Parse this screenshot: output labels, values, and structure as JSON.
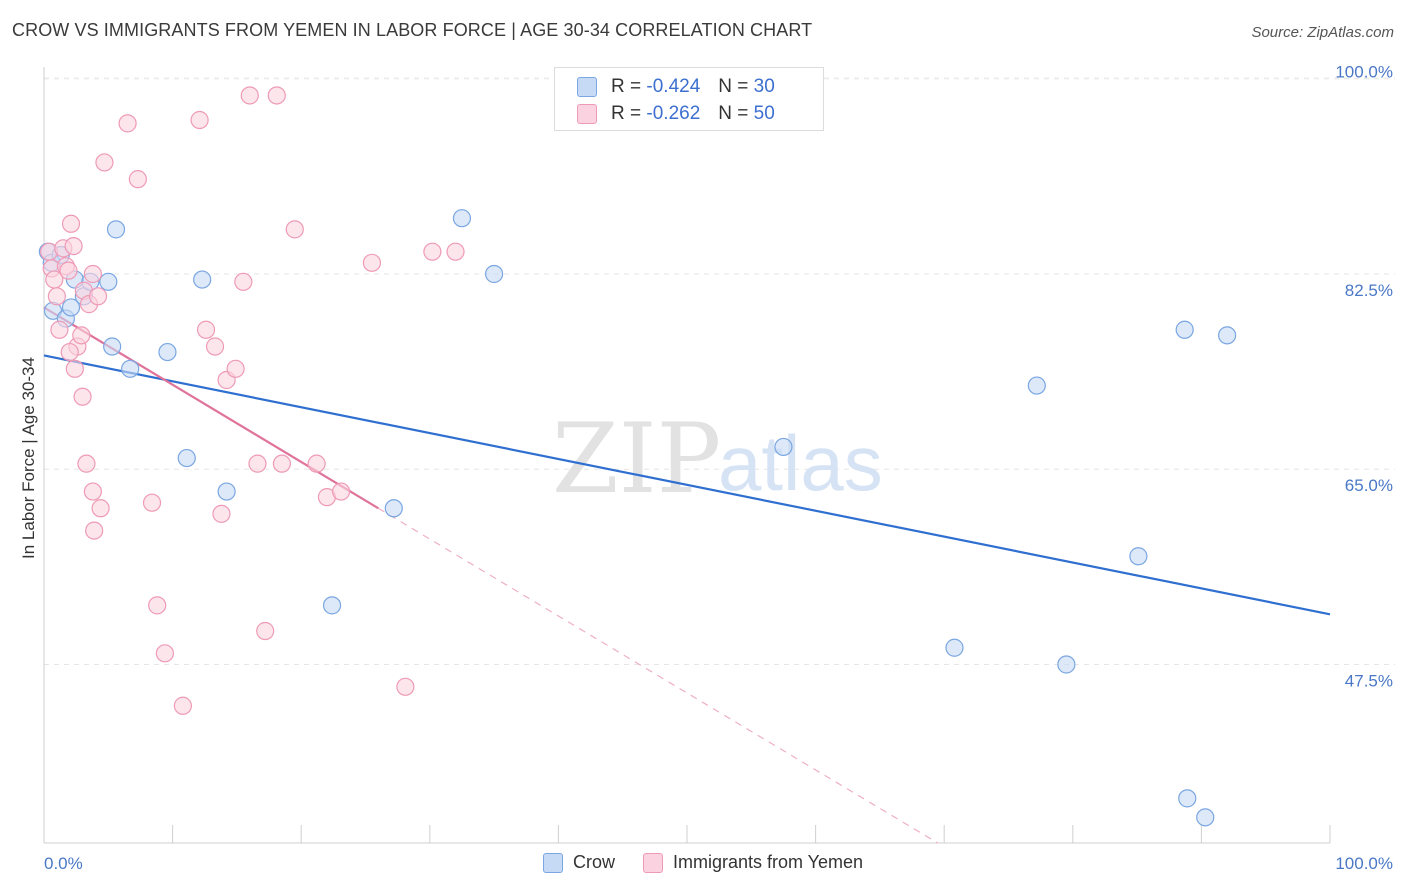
{
  "title": "CROW VS IMMIGRANTS FROM YEMEN IN LABOR FORCE | AGE 30-34 CORRELATION CHART",
  "source": "Source: ZipAtlas.com",
  "watermark": {
    "zip": "ZIP",
    "atlas": "atlas"
  },
  "legend": {
    "rows": [
      {
        "r_label": "R =",
        "r_value": "-0.424",
        "n_label": "N =",
        "n_value": "30",
        "color": "#a9c8f0",
        "border": "#7aa6e2"
      },
      {
        "r_label": "R =",
        "r_value": "-0.262",
        "n_label": "N =",
        "n_value": "50",
        "color": "#f8c3d4",
        "border": "#ee9ab6"
      }
    ]
  },
  "bottom_legend": [
    {
      "label": "Crow",
      "color": "#c6daf5",
      "border": "#7aa6e2"
    },
    {
      "label": "Immigrants from Yemen",
      "color": "#fbd3e0",
      "border": "#ee9ab6"
    }
  ],
  "chart_data": {
    "type": "scatter",
    "title": "CROW VS IMMIGRANTS FROM YEMEN IN LABOR FORCE | AGE 30-34 CORRELATION CHART",
    "xlabel": "",
    "ylabel": "In Labor Force | Age 30-34",
    "xlim": [
      0,
      100
    ],
    "ylim": [
      31.5,
      101.5
    ],
    "x_tick_labels": [
      "0.0%",
      "100.0%"
    ],
    "y_ticks": [
      47.5,
      65.0,
      82.5,
      100.0
    ],
    "y_tick_labels": [
      "47.5%",
      "65.0%",
      "82.5%",
      "100.0%"
    ],
    "grid": true,
    "series": [
      {
        "name": "Crow",
        "color": "#7aa6e2",
        "fill": "#c6daf5",
        "trend": {
          "x0": 0,
          "y0": 75.2,
          "x1": 100,
          "y1": 52.0,
          "color": "#2f6fd0"
        },
        "points": [
          [
            0.3,
            84.5
          ],
          [
            0.6,
            83.5
          ],
          [
            0.7,
            79.2
          ],
          [
            1.3,
            84.2
          ],
          [
            1.7,
            78.5
          ],
          [
            2.1,
            79.5
          ],
          [
            2.4,
            82.0
          ],
          [
            3.1,
            80.5
          ],
          [
            3.6,
            81.8
          ],
          [
            5.0,
            81.8
          ],
          [
            5.6,
            86.5
          ],
          [
            5.3,
            76.0
          ],
          [
            6.7,
            74.0
          ],
          [
            9.6,
            75.5
          ],
          [
            11.1,
            66.0
          ],
          [
            12.3,
            82.0
          ],
          [
            14.2,
            63.0
          ],
          [
            22.4,
            52.8
          ],
          [
            27.2,
            61.5
          ],
          [
            32.5,
            87.5
          ],
          [
            35.0,
            82.5
          ],
          [
            57.5,
            67.0
          ],
          [
            70.8,
            49.0
          ],
          [
            77.2,
            72.5
          ],
          [
            79.5,
            47.5
          ],
          [
            85.1,
            57.2
          ],
          [
            88.7,
            77.5
          ],
          [
            92.0,
            77.0
          ],
          [
            88.9,
            35.5
          ],
          [
            90.3,
            33.8
          ]
        ]
      },
      {
        "name": "Immigrants from Yemen",
        "color": "#ee9ab6",
        "fill": "#fbd3e0",
        "trend": {
          "x0": 0,
          "y0": 79.5,
          "x1": 26,
          "y1": 61.5,
          "color": "#e0739a"
        },
        "trend_dashed": {
          "x0": 26,
          "y0": 61.5,
          "x1": 69.5,
          "y1": 31.5,
          "color": "#eeb0c4"
        },
        "points": [
          [
            0.4,
            84.5
          ],
          [
            0.6,
            83.0
          ],
          [
            0.8,
            82.0
          ],
          [
            1.0,
            80.5
          ],
          [
            1.2,
            77.5
          ],
          [
            1.5,
            84.8
          ],
          [
            1.7,
            83.2
          ],
          [
            1.9,
            82.8
          ],
          [
            2.1,
            87.0
          ],
          [
            2.3,
            85.0
          ],
          [
            2.6,
            76.0
          ],
          [
            2.9,
            77.0
          ],
          [
            3.1,
            81.0
          ],
          [
            3.5,
            79.8
          ],
          [
            3.8,
            82.5
          ],
          [
            4.2,
            80.5
          ],
          [
            2.0,
            75.5
          ],
          [
            2.4,
            74.0
          ],
          [
            3.0,
            71.5
          ],
          [
            3.3,
            65.5
          ],
          [
            3.8,
            63.0
          ],
          [
            3.9,
            59.5
          ],
          [
            4.4,
            61.5
          ],
          [
            4.7,
            92.5
          ],
          [
            6.5,
            96.0
          ],
          [
            7.3,
            91.0
          ],
          [
            8.4,
            62.0
          ],
          [
            8.8,
            52.8
          ],
          [
            9.4,
            48.5
          ],
          [
            10.8,
            43.8
          ],
          [
            12.1,
            96.3
          ],
          [
            12.6,
            77.5
          ],
          [
            13.3,
            76.0
          ],
          [
            13.8,
            61.0
          ],
          [
            14.2,
            73.0
          ],
          [
            14.9,
            74.0
          ],
          [
            15.5,
            81.8
          ],
          [
            16.0,
            98.5
          ],
          [
            16.6,
            65.5
          ],
          [
            17.2,
            50.5
          ],
          [
            18.1,
            98.5
          ],
          [
            18.5,
            65.5
          ],
          [
            19.5,
            86.5
          ],
          [
            21.2,
            65.5
          ],
          [
            22.0,
            62.5
          ],
          [
            23.1,
            63.0
          ],
          [
            25.5,
            83.5
          ],
          [
            28.1,
            45.5
          ],
          [
            30.2,
            84.5
          ],
          [
            32.0,
            84.5
          ]
        ]
      }
    ]
  }
}
